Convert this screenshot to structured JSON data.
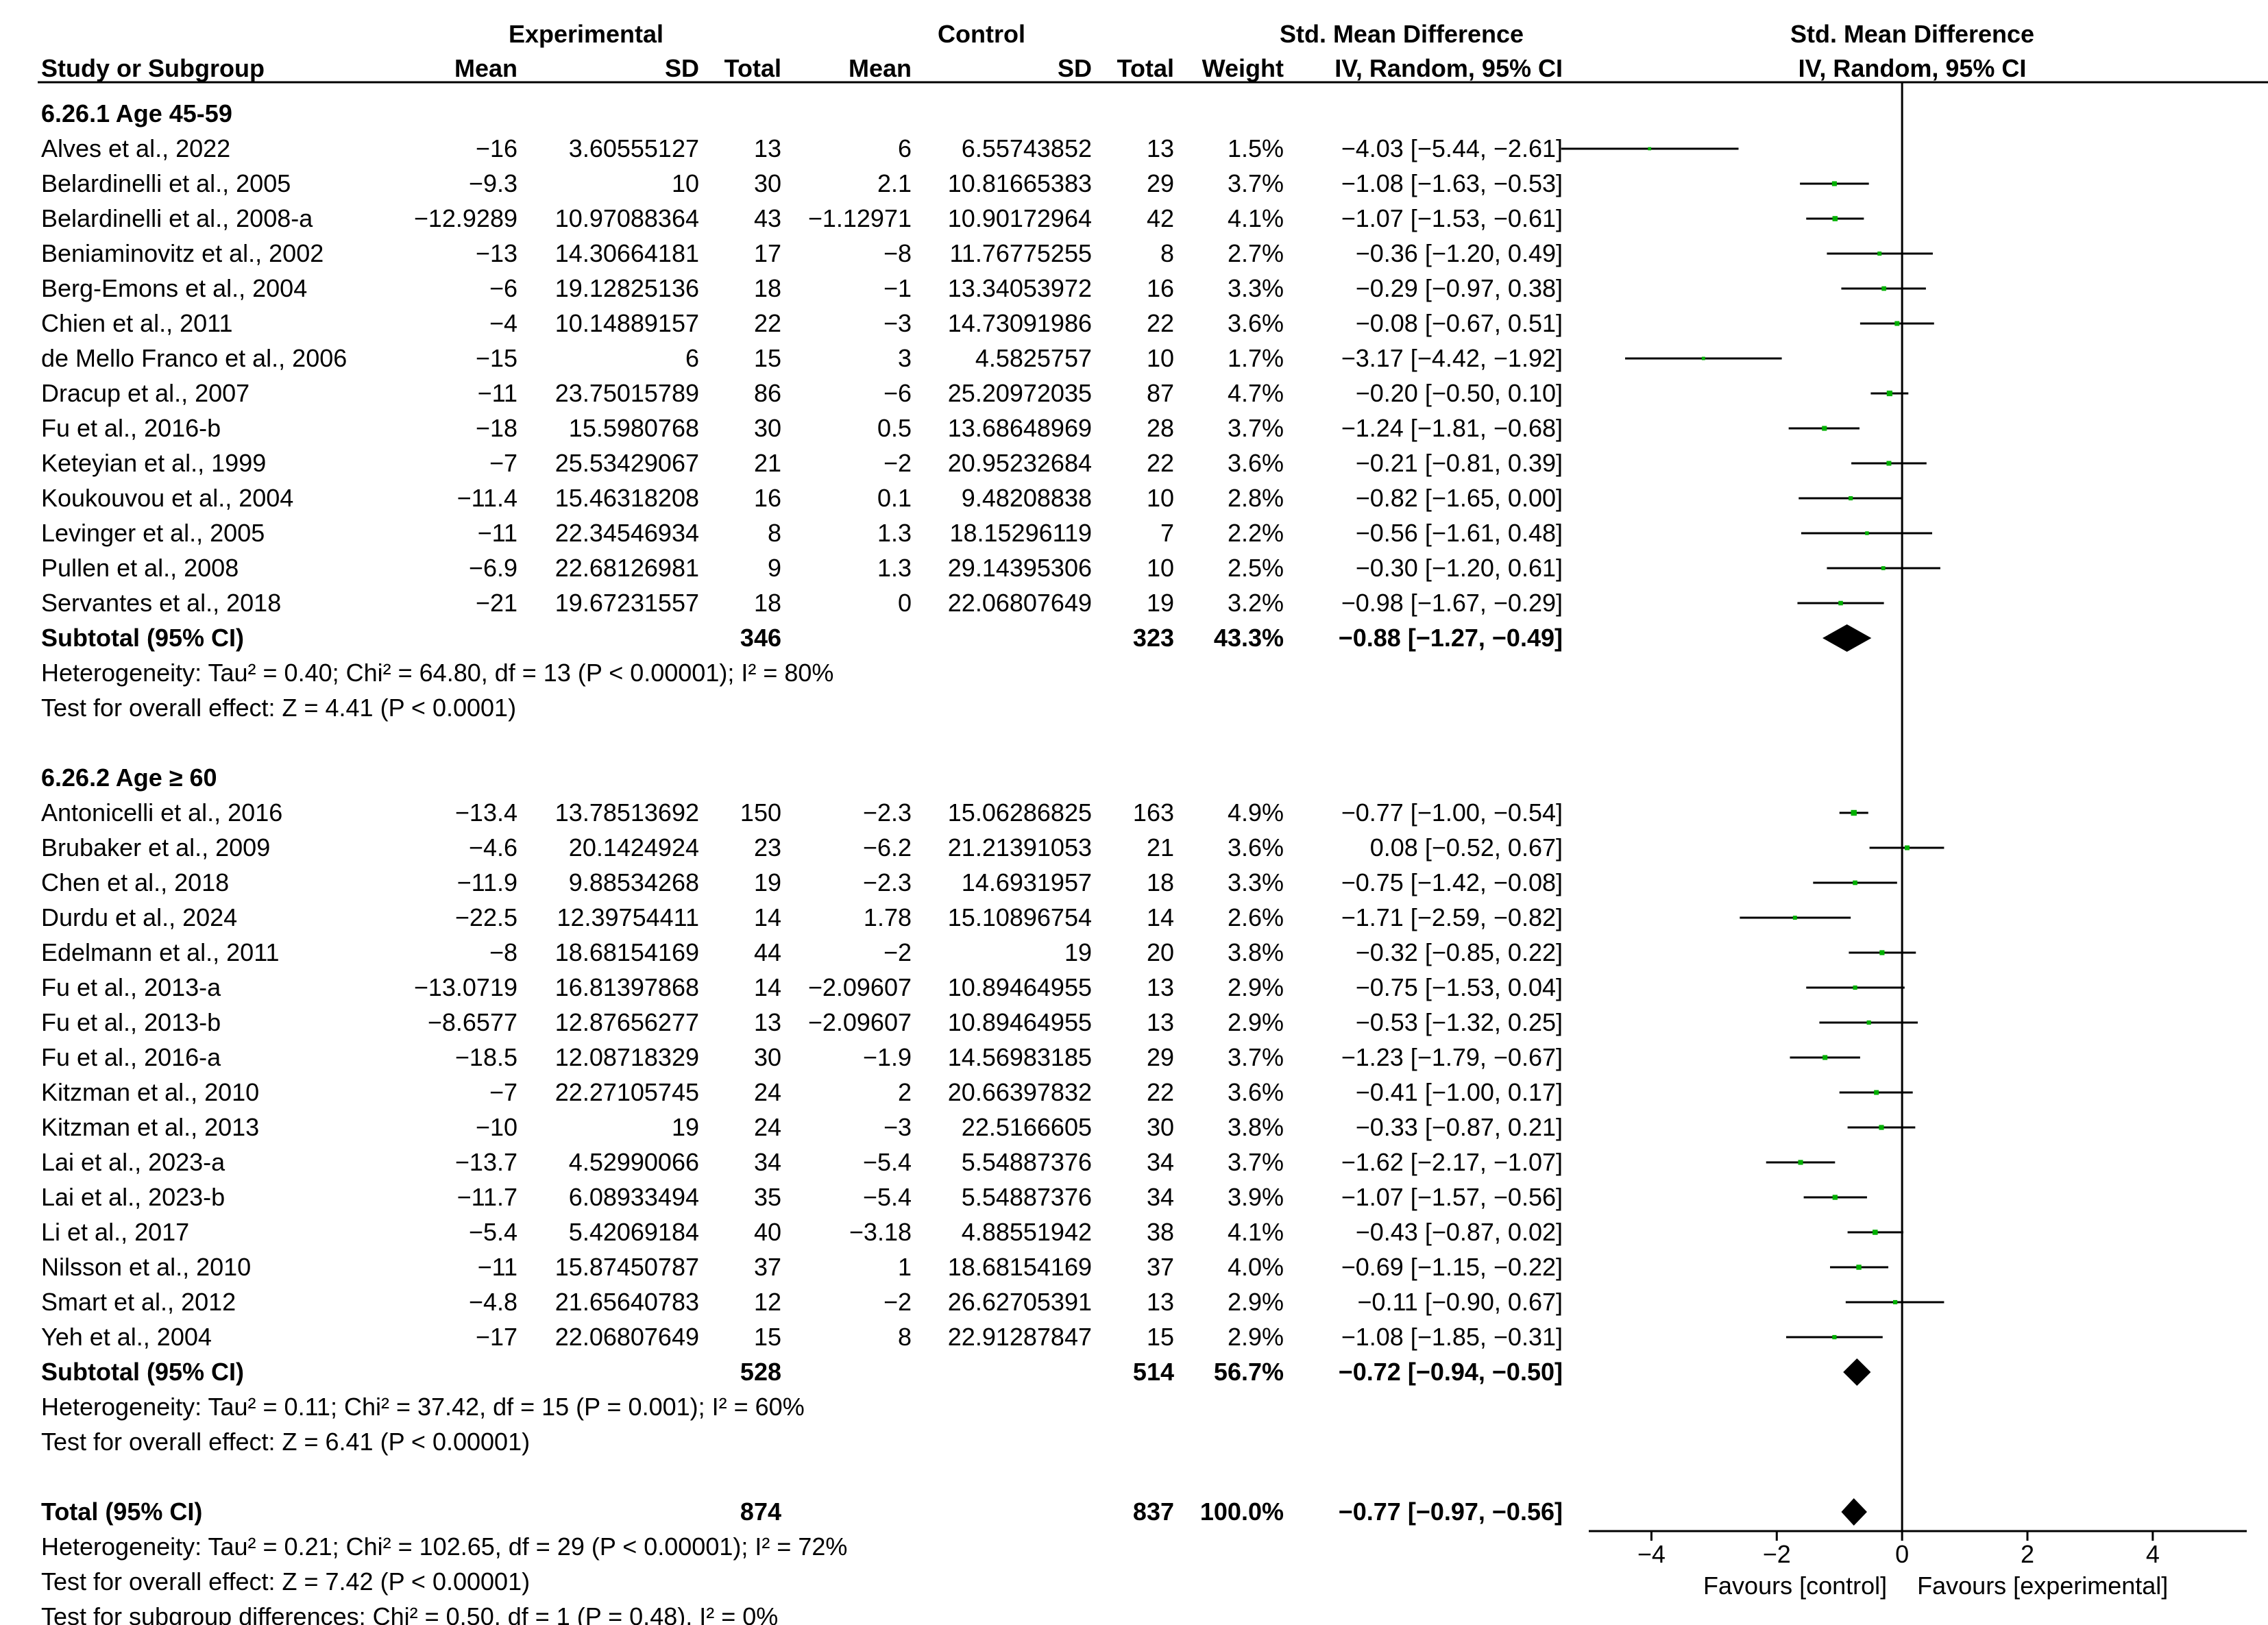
{
  "headers": {
    "study_col": "Study or Subgroup",
    "exp_group": "Experimental",
    "ctrl_group": "Control",
    "mean": "Mean",
    "sd": "SD",
    "total": "Total",
    "weight": "Weight",
    "effect_group": "Std. Mean Difference",
    "effect_method": "IV, Random, 95% CI",
    "plot_group": "Std. Mean Difference",
    "plot_method": "IV, Random, 95% CI"
  },
  "colors": {
    "point": "#00b000",
    "diamond": "#000000",
    "line": "#000000"
  },
  "chart_data": {
    "type": "forest",
    "measure": "Std. Mean Difference",
    "method": "IV, Random, 95% CI",
    "xlim": [
      -5,
      5.5
    ],
    "ticks": [
      -4,
      -2,
      0,
      2,
      4
    ],
    "tick_labels": [
      "−4",
      "−2",
      "0",
      "2",
      "4"
    ],
    "favours_left": "Favours [control]",
    "favours_right": "Favours [experimental]",
    "subgroups": [
      {
        "label": "6.26.1 Age 45-59",
        "studies": [
          {
            "name": "Alves et al., 2022",
            "e_mean": "−16",
            "e_sd": "3.60555127",
            "e_total": "13",
            "c_mean": "6",
            "c_sd": "6.55743852",
            "c_total": "13",
            "weight": "1.5%",
            "ci_text": "−4.03 [−5.44, −2.61]",
            "est": -4.03,
            "lo": -5.44,
            "hi": -2.61
          },
          {
            "name": "Belardinelli et al., 2005",
            "e_mean": "−9.3",
            "e_sd": "10",
            "e_total": "30",
            "c_mean": "2.1",
            "c_sd": "10.81665383",
            "c_total": "29",
            "weight": "3.7%",
            "ci_text": "−1.08 [−1.63, −0.53]",
            "est": -1.08,
            "lo": -1.63,
            "hi": -0.53
          },
          {
            "name": "Belardinelli et al., 2008-a",
            "e_mean": "−12.9289",
            "e_sd": "10.97088364",
            "e_total": "43",
            "c_mean": "−1.12971",
            "c_sd": "10.90172964",
            "c_total": "42",
            "weight": "4.1%",
            "ci_text": "−1.07 [−1.53, −0.61]",
            "est": -1.07,
            "lo": -1.53,
            "hi": -0.61
          },
          {
            "name": "Beniaminovitz et al., 2002",
            "e_mean": "−13",
            "e_sd": "14.30664181",
            "e_total": "17",
            "c_mean": "−8",
            "c_sd": "11.76775255",
            "c_total": "8",
            "weight": "2.7%",
            "ci_text": "−0.36 [−1.20, 0.49]",
            "est": -0.36,
            "lo": -1.2,
            "hi": 0.49
          },
          {
            "name": "Berg-Emons et al., 2004",
            "e_mean": "−6",
            "e_sd": "19.12825136",
            "e_total": "18",
            "c_mean": "−1",
            "c_sd": "13.34053972",
            "c_total": "16",
            "weight": "3.3%",
            "ci_text": "−0.29 [−0.97, 0.38]",
            "est": -0.29,
            "lo": -0.97,
            "hi": 0.38
          },
          {
            "name": "Chien et al., 2011",
            "e_mean": "−4",
            "e_sd": "10.14889157",
            "e_total": "22",
            "c_mean": "−3",
            "c_sd": "14.73091986",
            "c_total": "22",
            "weight": "3.6%",
            "ci_text": "−0.08 [−0.67, 0.51]",
            "est": -0.08,
            "lo": -0.67,
            "hi": 0.51
          },
          {
            "name": "de Mello Franco et al., 2006",
            "e_mean": "−15",
            "e_sd": "6",
            "e_total": "15",
            "c_mean": "3",
            "c_sd": "4.5825757",
            "c_total": "10",
            "weight": "1.7%",
            "ci_text": "−3.17 [−4.42, −1.92]",
            "est": -3.17,
            "lo": -4.42,
            "hi": -1.92
          },
          {
            "name": "Dracup et al., 2007",
            "e_mean": "−11",
            "e_sd": "23.75015789",
            "e_total": "86",
            "c_mean": "−6",
            "c_sd": "25.20972035",
            "c_total": "87",
            "weight": "4.7%",
            "ci_text": "−0.20 [−0.50, 0.10]",
            "est": -0.2,
            "lo": -0.5,
            "hi": 0.1
          },
          {
            "name": "Fu et al., 2016-b",
            "e_mean": "−18",
            "e_sd": "15.5980768",
            "e_total": "30",
            "c_mean": "0.5",
            "c_sd": "13.68648969",
            "c_total": "28",
            "weight": "3.7%",
            "ci_text": "−1.24 [−1.81, −0.68]",
            "est": -1.24,
            "lo": -1.81,
            "hi": -0.68
          },
          {
            "name": "Keteyian et al., 1999",
            "e_mean": "−7",
            "e_sd": "25.53429067",
            "e_total": "21",
            "c_mean": "−2",
            "c_sd": "20.95232684",
            "c_total": "22",
            "weight": "3.6%",
            "ci_text": "−0.21 [−0.81, 0.39]",
            "est": -0.21,
            "lo": -0.81,
            "hi": 0.39
          },
          {
            "name": "Koukouvou et al., 2004",
            "e_mean": "−11.4",
            "e_sd": "15.46318208",
            "e_total": "16",
            "c_mean": "0.1",
            "c_sd": "9.48208838",
            "c_total": "10",
            "weight": "2.8%",
            "ci_text": "−0.82 [−1.65, 0.00]",
            "est": -0.82,
            "lo": -1.65,
            "hi": 0.0
          },
          {
            "name": "Levinger et al., 2005",
            "e_mean": "−11",
            "e_sd": "22.34546934",
            "e_total": "8",
            "c_mean": "1.3",
            "c_sd": "18.15296119",
            "c_total": "7",
            "weight": "2.2%",
            "ci_text": "−0.56 [−1.61, 0.48]",
            "est": -0.56,
            "lo": -1.61,
            "hi": 0.48
          },
          {
            "name": "Pullen et al., 2008",
            "e_mean": "−6.9",
            "e_sd": "22.68126981",
            "e_total": "9",
            "c_mean": "1.3",
            "c_sd": "29.14395306",
            "c_total": "10",
            "weight": "2.5%",
            "ci_text": "−0.30 [−1.20, 0.61]",
            "est": -0.3,
            "lo": -1.2,
            "hi": 0.61
          },
          {
            "name": "Servantes et al., 2018",
            "e_mean": "−21",
            "e_sd": "19.67231557",
            "e_total": "18",
            "c_mean": "0",
            "c_sd": "22.06807649",
            "c_total": "19",
            "weight": "3.2%",
            "ci_text": "−0.98 [−1.67, −0.29]",
            "est": -0.98,
            "lo": -1.67,
            "hi": -0.29
          }
        ],
        "subtotal": {
          "label": "Subtotal (95% CI)",
          "e_total": "346",
          "c_total": "323",
          "weight": "43.3%",
          "ci_text": "−0.88 [−1.27, −0.49]",
          "est": -0.88,
          "lo": -1.27,
          "hi": -0.49
        },
        "heterogeneity": "Heterogeneity: Tau² = 0.40; Chi² = 64.80, df = 13 (P < 0.00001); I² = 80%",
        "overall_effect": "Test for overall effect: Z = 4.41 (P < 0.0001)"
      },
      {
        "label": "6.26.2 Age ≥ 60",
        "studies": [
          {
            "name": "Antonicelli et al., 2016",
            "e_mean": "−13.4",
            "e_sd": "13.78513692",
            "e_total": "150",
            "c_mean": "−2.3",
            "c_sd": "15.06286825",
            "c_total": "163",
            "weight": "4.9%",
            "ci_text": "−0.77 [−1.00, −0.54]",
            "est": -0.77,
            "lo": -1.0,
            "hi": -0.54
          },
          {
            "name": "Brubaker et al., 2009",
            "e_mean": "−4.6",
            "e_sd": "20.1424924",
            "e_total": "23",
            "c_mean": "−6.2",
            "c_sd": "21.21391053",
            "c_total": "21",
            "weight": "3.6%",
            "ci_text": "0.08 [−0.52, 0.67]",
            "est": 0.08,
            "lo": -0.52,
            "hi": 0.67
          },
          {
            "name": "Chen et al., 2018",
            "e_mean": "−11.9",
            "e_sd": "9.88534268",
            "e_total": "19",
            "c_mean": "−2.3",
            "c_sd": "14.6931957",
            "c_total": "18",
            "weight": "3.3%",
            "ci_text": "−0.75 [−1.42, −0.08]",
            "est": -0.75,
            "lo": -1.42,
            "hi": -0.08
          },
          {
            "name": "Durdu et al., 2024",
            "e_mean": "−22.5",
            "e_sd": "12.39754411",
            "e_total": "14",
            "c_mean": "1.78",
            "c_sd": "15.10896754",
            "c_total": "14",
            "weight": "2.6%",
            "ci_text": "−1.71 [−2.59, −0.82]",
            "est": -1.71,
            "lo": -2.59,
            "hi": -0.82
          },
          {
            "name": "Edelmann et al., 2011",
            "e_mean": "−8",
            "e_sd": "18.68154169",
            "e_total": "44",
            "c_mean": "−2",
            "c_sd": "19",
            "c_total": "20",
            "weight": "3.8%",
            "ci_text": "−0.32 [−0.85, 0.22]",
            "est": -0.32,
            "lo": -0.85,
            "hi": 0.22
          },
          {
            "name": "Fu et al., 2013-a",
            "e_mean": "−13.0719",
            "e_sd": "16.81397868",
            "e_total": "14",
            "c_mean": "−2.09607",
            "c_sd": "10.89464955",
            "c_total": "13",
            "weight": "2.9%",
            "ci_text": "−0.75 [−1.53, 0.04]",
            "est": -0.75,
            "lo": -1.53,
            "hi": 0.04
          },
          {
            "name": "Fu et al., 2013-b",
            "e_mean": "−8.6577",
            "e_sd": "12.87656277",
            "e_total": "13",
            "c_mean": "−2.09607",
            "c_sd": "10.89464955",
            "c_total": "13",
            "weight": "2.9%",
            "ci_text": "−0.53 [−1.32, 0.25]",
            "est": -0.53,
            "lo": -1.32,
            "hi": 0.25
          },
          {
            "name": "Fu et al., 2016-a",
            "e_mean": "−18.5",
            "e_sd": "12.08718329",
            "e_total": "30",
            "c_mean": "−1.9",
            "c_sd": "14.56983185",
            "c_total": "29",
            "weight": "3.7%",
            "ci_text": "−1.23 [−1.79, −0.67]",
            "est": -1.23,
            "lo": -1.79,
            "hi": -0.67
          },
          {
            "name": "Kitzman et al., 2010",
            "e_mean": "−7",
            "e_sd": "22.27105745",
            "e_total": "24",
            "c_mean": "2",
            "c_sd": "20.66397832",
            "c_total": "22",
            "weight": "3.6%",
            "ci_text": "−0.41 [−1.00, 0.17]",
            "est": -0.41,
            "lo": -1.0,
            "hi": 0.17
          },
          {
            "name": "Kitzman et al., 2013",
            "e_mean": "−10",
            "e_sd": "19",
            "e_total": "24",
            "c_mean": "−3",
            "c_sd": "22.5166605",
            "c_total": "30",
            "weight": "3.8%",
            "ci_text": "−0.33 [−0.87, 0.21]",
            "est": -0.33,
            "lo": -0.87,
            "hi": 0.21
          },
          {
            "name": "Lai et al., 2023-a",
            "e_mean": "−13.7",
            "e_sd": "4.52990066",
            "e_total": "34",
            "c_mean": "−5.4",
            "c_sd": "5.54887376",
            "c_total": "34",
            "weight": "3.7%",
            "ci_text": "−1.62 [−2.17, −1.07]",
            "est": -1.62,
            "lo": -2.17,
            "hi": -1.07
          },
          {
            "name": "Lai et al., 2023-b",
            "e_mean": "−11.7",
            "e_sd": "6.08933494",
            "e_total": "35",
            "c_mean": "−5.4",
            "c_sd": "5.54887376",
            "c_total": "34",
            "weight": "3.9%",
            "ci_text": "−1.07 [−1.57, −0.56]",
            "est": -1.07,
            "lo": -1.57,
            "hi": -0.56
          },
          {
            "name": "Li et al., 2017",
            "e_mean": "−5.4",
            "e_sd": "5.42069184",
            "e_total": "40",
            "c_mean": "−3.18",
            "c_sd": "4.88551942",
            "c_total": "38",
            "weight": "4.1%",
            "ci_text": "−0.43 [−0.87, 0.02]",
            "est": -0.43,
            "lo": -0.87,
            "hi": 0.02
          },
          {
            "name": "Nilsson et al., 2010",
            "e_mean": "−11",
            "e_sd": "15.87450787",
            "e_total": "37",
            "c_mean": "1",
            "c_sd": "18.68154169",
            "c_total": "37",
            "weight": "4.0%",
            "ci_text": "−0.69 [−1.15, −0.22]",
            "est": -0.69,
            "lo": -1.15,
            "hi": -0.22
          },
          {
            "name": "Smart et al., 2012",
            "e_mean": "−4.8",
            "e_sd": "21.65640783",
            "e_total": "12",
            "c_mean": "−2",
            "c_sd": "26.62705391",
            "c_total": "13",
            "weight": "2.9%",
            "ci_text": "−0.11 [−0.90, 0.67]",
            "est": -0.11,
            "lo": -0.9,
            "hi": 0.67
          },
          {
            "name": "Yeh et al., 2004",
            "e_mean": "−17",
            "e_sd": "22.06807649",
            "e_total": "15",
            "c_mean": "8",
            "c_sd": "22.91287847",
            "c_total": "15",
            "weight": "2.9%",
            "ci_text": "−1.08 [−1.85, −0.31]",
            "est": -1.08,
            "lo": -1.85,
            "hi": -0.31
          }
        ],
        "subtotal": {
          "label": "Subtotal (95% CI)",
          "e_total": "528",
          "c_total": "514",
          "weight": "56.7%",
          "ci_text": "−0.72 [−0.94, −0.50]",
          "est": -0.72,
          "lo": -0.94,
          "hi": -0.5
        },
        "heterogeneity": "Heterogeneity: Tau² = 0.11; Chi² = 37.42, df = 15 (P = 0.001); I² = 60%",
        "overall_effect": "Test for overall effect: Z = 6.41 (P < 0.00001)"
      }
    ],
    "total": {
      "label": "Total (95% CI)",
      "e_total": "874",
      "c_total": "837",
      "weight": "100.0%",
      "ci_text": "−0.77 [−0.97, −0.56]",
      "est": -0.77,
      "lo": -0.97,
      "hi": -0.56
    },
    "total_heterogeneity": "Heterogeneity: Tau² = 0.21; Chi² = 102.65, df = 29 (P < 0.00001); I² = 72%",
    "total_overall_effect": "Test for overall effect: Z = 7.42 (P < 0.00001)",
    "subgroup_differences": "Test for subgroup differences: Chi² = 0.50, df = 1 (P = 0.48), I² = 0%"
  }
}
